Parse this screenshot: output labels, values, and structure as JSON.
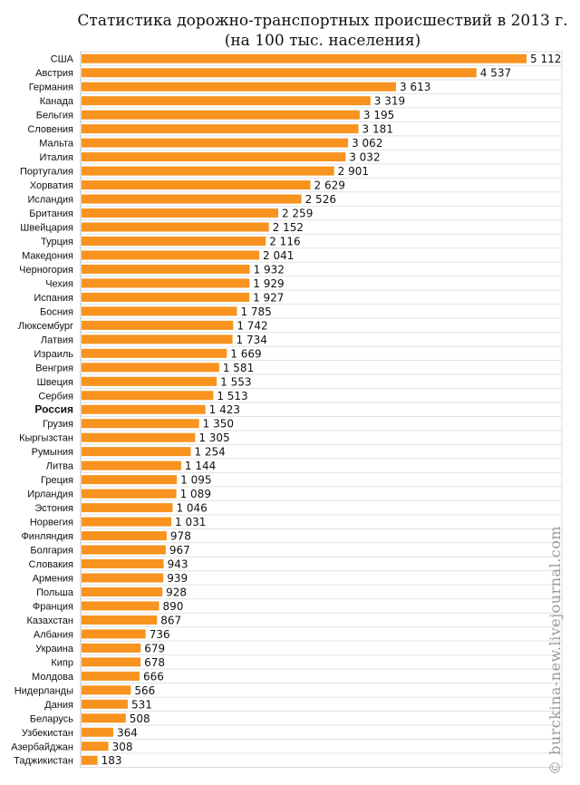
{
  "chart_data": {
    "type": "bar",
    "orientation": "horizontal",
    "title": "Статистика дорожно-транспортных происшествий в 2013 г.",
    "subtitle": "(на 100 тыс. населения)",
    "bar_color": "#f7931e",
    "grid": true,
    "highlight_category": "Россия",
    "categories": [
      "США",
      "Австрия",
      "Германия",
      "Канада",
      "Бельгия",
      "Словения",
      "Мальта",
      "Италия",
      "Португалия",
      "Хорватия",
      "Исландия",
      "Британия",
      "Швейцария",
      "Турция",
      "Македония",
      "Черногория",
      "Чехия",
      "Испания",
      "Босния",
      "Люксембург",
      "Латвия",
      "Израиль",
      "Венгрия",
      "Швеция",
      "Сербия",
      "Россия",
      "Грузия",
      "Кыргызстан",
      "Румыния",
      "Литва",
      "Греция",
      "Ирландия",
      "Эстония",
      "Норвегия",
      "Финляндия",
      "Болгария",
      "Словакия",
      "Армения",
      "Польша",
      "Франция",
      "Казахстан",
      "Албания",
      "Украина",
      "Кипр",
      "Молдова",
      "Нидерланды",
      "Дания",
      "Беларусь",
      "Узбекистан",
      "Азербайджан",
      "Таджикистан"
    ],
    "values": [
      5112,
      4537,
      3613,
      3319,
      3195,
      3181,
      3062,
      3032,
      2901,
      2629,
      2526,
      2259,
      2152,
      2116,
      2041,
      1932,
      1929,
      1927,
      1785,
      1742,
      1734,
      1669,
      1581,
      1553,
      1513,
      1423,
      1350,
      1305,
      1254,
      1144,
      1095,
      1089,
      1046,
      1031,
      978,
      967,
      943,
      939,
      928,
      890,
      867,
      736,
      679,
      678,
      666,
      566,
      531,
      508,
      364,
      308,
      183
    ],
    "value_labels": [
      "5 112",
      "4 537",
      "3 613",
      "3 319",
      "3 195",
      "3 181",
      "3 062",
      "3 032",
      "2 901",
      "2 629",
      "2 526",
      "2 259",
      "2 152",
      "2 116",
      "2 041",
      "1 932",
      "1 929",
      "1 927",
      "1 785",
      "1 742",
      "1 734",
      "1 669",
      "1 581",
      "1 553",
      "1 513",
      "1 423",
      "1 350",
      "1 305",
      "1 254",
      "1 144",
      "1 095",
      "1 089",
      "1 046",
      "1 031",
      "978",
      "967",
      "943",
      "939",
      "928",
      "890",
      "867",
      "736",
      "679",
      "678",
      "666",
      "566",
      "531",
      "508",
      "364",
      "308",
      "183"
    ],
    "xlim": [
      0,
      5112
    ]
  },
  "watermark": "© burckina-new.livejournal.com"
}
